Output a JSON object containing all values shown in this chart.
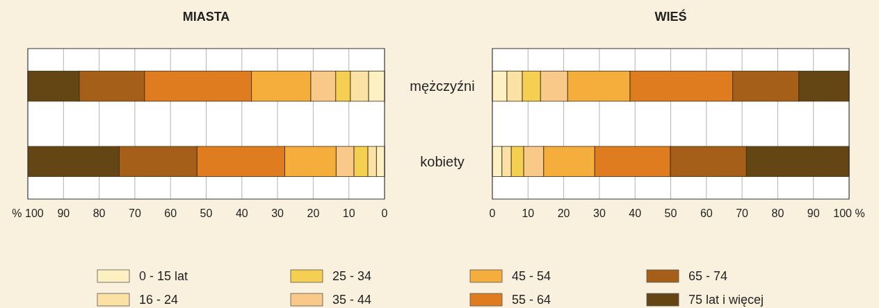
{
  "chart_data": [
    {
      "type": "bar",
      "title": "MIASTA",
      "orientation": "horizontal",
      "stacked": true,
      "categories": [
        null,
        null
      ],
      "xlim": [
        100,
        0
      ],
      "xticks": [
        {
          "value": 100,
          "label": "% 100"
        },
        90,
        80,
        70,
        60,
        50,
        40,
        30,
        20,
        10,
        0
      ],
      "grid": "x",
      "legend": "bottom",
      "series": [
        {
          "name": "0 - 15 lat",
          "color": "#fdf1c4",
          "values": [
            4.5,
            2.3
          ]
        },
        {
          "name": "16 - 24",
          "color": "#fbe2a4",
          "values": [
            5.1,
            2.4
          ]
        },
        {
          "name": "25 - 34",
          "color": "#f5cf52",
          "values": [
            4.1,
            3.9
          ]
        },
        {
          "name": "35 - 44",
          "color": "#f9c98a",
          "values": [
            7.0,
            5.0
          ]
        },
        {
          "name": "45 - 54",
          "color": "#f5ae3c",
          "values": [
            16.6,
            14.4
          ]
        },
        {
          "name": "55 - 64",
          "color": "#e07c20",
          "values": [
            30.0,
            24.6
          ]
        },
        {
          "name": "65 - 74",
          "color": "#a65f18",
          "values": [
            18.3,
            21.8
          ]
        },
        {
          "name": "75 lat i więcej",
          "color": "#634614",
          "values": [
            14.4,
            25.5
          ]
        }
      ]
    },
    {
      "type": "bar",
      "title": "WIEŚ",
      "orientation": "horizontal",
      "stacked": true,
      "categories": [
        "mężczyźni",
        "kobiety"
      ],
      "xlim": [
        0,
        100
      ],
      "xticks": [
        0,
        10,
        20,
        30,
        40,
        50,
        60,
        70,
        80,
        90,
        {
          "value": 100,
          "label": "100 %"
        }
      ],
      "grid": "x",
      "series": [
        {
          "color": "#fdf1c4",
          "values": [
            4.1,
            2.7
          ]
        },
        {
          "color": "#fbe2a4",
          "values": [
            4.3,
            2.6
          ]
        },
        {
          "color": "#f5cf52",
          "values": [
            5.1,
            3.5
          ]
        },
        {
          "color": "#f9c98a",
          "values": [
            7.6,
            5.6
          ]
        },
        {
          "color": "#f5ae3c",
          "values": [
            17.5,
            14.3
          ]
        },
        {
          "color": "#e07c20",
          "values": [
            28.8,
            21.2
          ]
        },
        {
          "color": "#a65f18",
          "values": [
            18.5,
            21.3
          ]
        },
        {
          "color": "#634614",
          "values": [
            14.1,
            28.8
          ]
        }
      ]
    }
  ]
}
